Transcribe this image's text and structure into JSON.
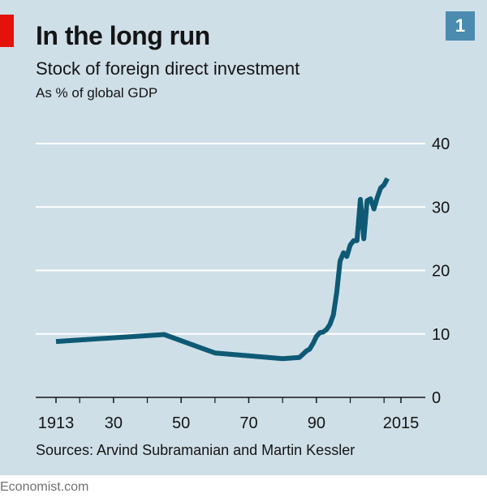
{
  "figure_number": "1",
  "brand": "Economist.com",
  "colors": {
    "background": "#cfdfe8",
    "line": "#0e5a75",
    "accent_red": "#e3120b",
    "badge": "#4b8bb0",
    "gridline": "#ffffff"
  },
  "chart_data": {
    "type": "line",
    "title": "In the long run",
    "subtitle": "Stock of foreign direct investment",
    "unit_note": "As % of global GDP",
    "xlabel": "",
    "ylabel": "As % of global GDP",
    "xlim": [
      1907,
      2022
    ],
    "ylim": [
      0,
      40
    ],
    "yticks": [
      0,
      10,
      20,
      30,
      40
    ],
    "xtick_values": [
      1913,
      1930,
      1950,
      1970,
      1990,
      2015
    ],
    "xtick_labels": [
      "1913",
      "30",
      "50",
      "70",
      "90",
      "2015"
    ],
    "grid": true,
    "source": "Sources: Arvind Subramanian and Martin Kessler",
    "series": [
      {
        "name": "Stock of foreign direct investment",
        "x": [
          1913,
          1945,
          1960,
          1980,
          1985,
          1986,
          1987,
          1988,
          1989,
          1990,
          1991,
          1992,
          1993,
          1994,
          1995,
          1996,
          1997,
          1998,
          1999,
          2000,
          2001,
          2002,
          2003,
          2004,
          2005,
          2006,
          2007,
          2008,
          2009,
          2010,
          2011,
          2012,
          2013,
          2014,
          2015
        ],
        "values": [
          8.8,
          9.9,
          7.0,
          6.1,
          6.3,
          6.8,
          7.3,
          7.6,
          8.5,
          9.6,
          10.2,
          10.3,
          10.7,
          11.5,
          13.0,
          16.5,
          21.5,
          22.8,
          22.2,
          24.0,
          24.7,
          24.7,
          31.2,
          25.0,
          31.0,
          31.3,
          29.7,
          31.5,
          33.0,
          33.5,
          34.5,
          null,
          null,
          null,
          null
        ]
      }
    ]
  }
}
